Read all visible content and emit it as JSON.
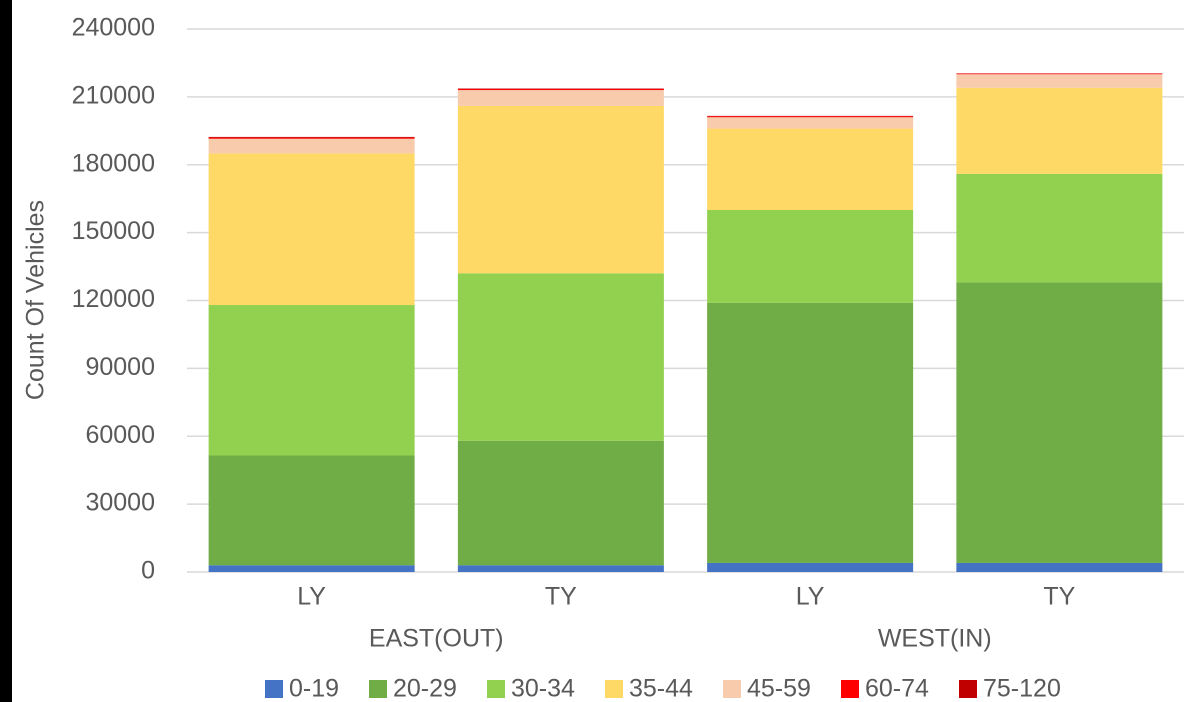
{
  "chart_data": {
    "type": "stacked_bar",
    "y_label": "Count Of Vehicles",
    "categories": [
      "LY",
      "TY",
      "LY",
      "TY"
    ],
    "groups": [
      "EAST(OUT)",
      "WEST(IN)"
    ],
    "ylim": [
      0,
      240000
    ],
    "yticks": [
      0,
      30000,
      60000,
      90000,
      120000,
      150000,
      180000,
      210000,
      240000
    ],
    "grid": true,
    "legend": "bottom",
    "series": [
      {
        "name": "0-19",
        "color": "#4472c4",
        "values": [
          3000,
          3000,
          4000,
          4000
        ]
      },
      {
        "name": "20-29",
        "color": "#70ad47",
        "values": [
          48500,
          55000,
          115000,
          124000
        ]
      },
      {
        "name": "30-34",
        "color": "#92d050",
        "values": [
          66500,
          74000,
          41000,
          48000
        ]
      },
      {
        "name": "35-44",
        "color": "#ffd966",
        "values": [
          67000,
          74000,
          36000,
          38000
        ]
      },
      {
        "name": "45-59",
        "color": "#f8cbad",
        "values": [
          6500,
          7000,
          5000,
          6000
        ]
      },
      {
        "name": "60-74",
        "color": "#ff0000",
        "values": [
          500,
          500,
          400,
          300
        ]
      },
      {
        "name": "75-120",
        "color": "#c00000",
        "values": [
          300,
          200,
          200,
          100
        ]
      }
    ]
  }
}
